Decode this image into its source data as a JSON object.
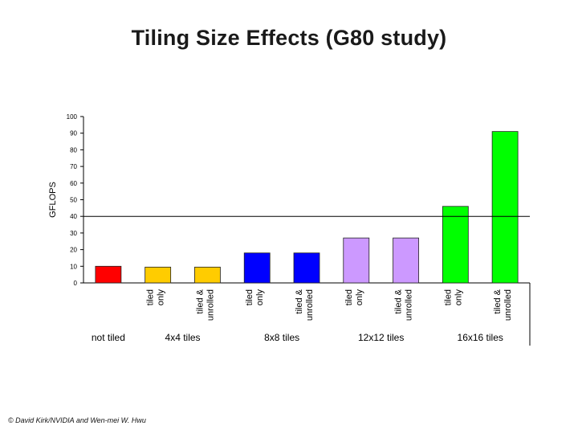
{
  "slide": {
    "title": "Tiling Size Effects (G80 study)",
    "footer": "© David Kirk/NVIDIA and Wen-mei W. Hwu"
  },
  "chart_data": {
    "type": "bar",
    "ylabel": "GFLOPS",
    "ylim": [
      0,
      100
    ],
    "yticks": [
      0,
      10,
      20,
      30,
      40,
      50,
      60,
      70,
      80,
      90,
      100
    ],
    "reference_line": 40,
    "bars": [
      {
        "label": "",
        "value": 10,
        "color": "#ff0000"
      },
      {
        "label": "tiled only",
        "value": 9.5,
        "color": "#ffcc00"
      },
      {
        "label": "tiled & unrolled",
        "value": 9.5,
        "color": "#ffcc00"
      },
      {
        "label": "tiled only",
        "value": 18,
        "color": "#0000ff"
      },
      {
        "label": "tiled & unrolled",
        "value": 18,
        "color": "#0000ff"
      },
      {
        "label": "tiled only",
        "value": 27,
        "color": "#cc99ff"
      },
      {
        "label": "tiled & unrolled",
        "value": 27,
        "color": "#cc99ff"
      },
      {
        "label": "tiled only",
        "value": 46,
        "color": "#00ff00"
      },
      {
        "label": "tiled & unrolled",
        "value": 91,
        "color": "#00ff00"
      }
    ],
    "groups": [
      {
        "label": "not tiled",
        "bars": [
          0
        ]
      },
      {
        "label": "4x4 tiles",
        "bars": [
          1,
          2
        ]
      },
      {
        "label": "8x8 tiles",
        "bars": [
          3,
          4
        ]
      },
      {
        "label": "12x12 tiles",
        "bars": [
          5,
          6
        ]
      },
      {
        "label": "16x16 tiles",
        "bars": [
          7,
          8
        ]
      }
    ]
  }
}
